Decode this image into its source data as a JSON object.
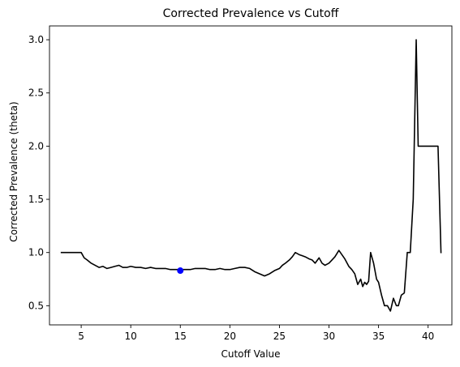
{
  "chart_data": {
    "type": "line",
    "title": "Corrected Prevalence vs Cutoff",
    "xlabel": "Cutoff Value",
    "ylabel": "Corrected Prevalence (theta)",
    "xlim": [
      1.8,
      42.4
    ],
    "ylim": [
      0.32,
      3.13
    ],
    "xticks": [
      5,
      10,
      15,
      20,
      25,
      30,
      35,
      40
    ],
    "yticks": [
      0.5,
      1.0,
      1.5,
      2.0,
      2.5,
      3.0
    ],
    "xtick_labels": [
      "5",
      "10",
      "15",
      "20",
      "25",
      "30",
      "35",
      "40"
    ],
    "ytick_labels": [
      "0.5",
      "1.0",
      "1.5",
      "2.0",
      "2.5",
      "3.0"
    ],
    "grid": false,
    "series": [
      {
        "line_color": "#000000",
        "x": [
          3.0,
          5.0,
          5.3,
          5.6,
          6.0,
          6.4,
          6.8,
          7.2,
          7.6,
          8.0,
          8.4,
          8.8,
          9.2,
          9.6,
          10.0,
          10.5,
          11.0,
          11.5,
          12.0,
          12.5,
          13.0,
          13.5,
          14.0,
          14.5,
          15.0,
          15.5,
          16.0,
          16.5,
          17.0,
          17.5,
          18.0,
          18.5,
          19.0,
          19.5,
          20.0,
          20.5,
          21.0,
          21.5,
          22.0,
          22.5,
          23.0,
          23.5,
          24.0,
          24.5,
          25.0,
          25.3,
          25.6,
          26.0,
          26.3,
          26.6,
          27.0,
          27.3,
          27.6,
          28.0,
          28.3,
          28.6,
          29.0,
          29.3,
          29.6,
          30.0,
          30.3,
          30.6,
          31.0,
          31.3,
          31.6,
          32.0,
          32.3,
          32.6,
          32.9,
          33.2,
          33.4,
          33.6,
          33.8,
          34.0,
          34.2,
          34.5,
          34.8,
          35.0,
          35.3,
          35.6,
          35.9,
          36.2,
          36.5,
          36.8,
          37.0,
          37.3,
          37.6,
          37.9,
          38.2,
          38.5,
          38.8,
          39.0,
          39.3,
          39.5,
          40.0,
          40.5,
          41.0,
          41.3
        ],
        "y": [
          1.0,
          1.0,
          0.95,
          0.93,
          0.9,
          0.88,
          0.86,
          0.87,
          0.85,
          0.86,
          0.87,
          0.88,
          0.86,
          0.86,
          0.87,
          0.86,
          0.86,
          0.85,
          0.86,
          0.85,
          0.85,
          0.85,
          0.84,
          0.84,
          0.84,
          0.84,
          0.84,
          0.85,
          0.85,
          0.85,
          0.84,
          0.84,
          0.85,
          0.84,
          0.84,
          0.85,
          0.86,
          0.86,
          0.85,
          0.82,
          0.8,
          0.78,
          0.8,
          0.83,
          0.85,
          0.88,
          0.9,
          0.93,
          0.96,
          1.0,
          0.98,
          0.97,
          0.96,
          0.94,
          0.93,
          0.9,
          0.95,
          0.9,
          0.88,
          0.9,
          0.93,
          0.96,
          1.02,
          0.98,
          0.94,
          0.87,
          0.84,
          0.8,
          0.7,
          0.75,
          0.68,
          0.72,
          0.7,
          0.73,
          1.0,
          0.9,
          0.75,
          0.72,
          0.6,
          0.5,
          0.5,
          0.45,
          0.57,
          0.5,
          0.5,
          0.6,
          0.62,
          1.0,
          1.0,
          1.5,
          3.0,
          2.0,
          2.0,
          2.0,
          2.0,
          2.0,
          2.0,
          1.0
        ]
      }
    ],
    "highlight_point": {
      "x": 15.0,
      "y": 0.83,
      "color": "#0000ff"
    }
  }
}
